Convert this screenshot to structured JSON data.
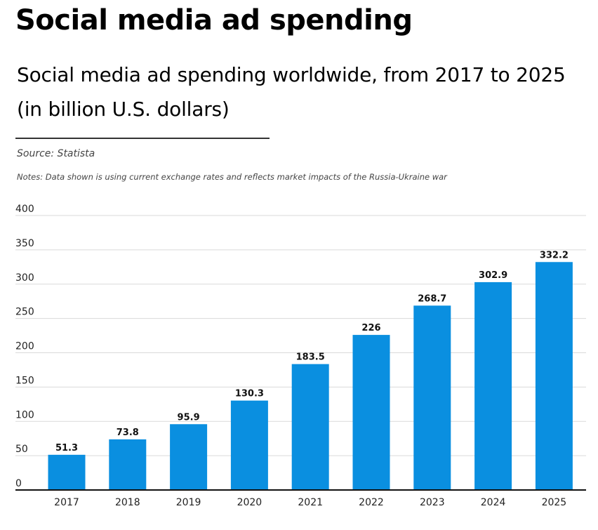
{
  "title": "Social media ad spending",
  "subtitle": "Social media ad spending worldwide, from 2017 to 2025 (in billion U.S. dollars)",
  "source": "Source: Statista",
  "notes": "Notes: Data shown is using current exchange rates and reflects market impacts of the Russia-Ukraine war",
  "chart_data": {
    "type": "bar",
    "title": "Social media ad spending worldwide, from 2017 to 2025 (in billion U.S. dollars)",
    "xlabel": "",
    "ylabel": "",
    "categories": [
      "2017",
      "2018",
      "2019",
      "2020",
      "2021",
      "2022",
      "2023",
      "2024",
      "2025"
    ],
    "values": [
      51.3,
      73.8,
      95.9,
      130.3,
      183.5,
      226,
      268.7,
      302.9,
      332.2
    ],
    "value_labels": [
      "51.3",
      "73.8",
      "95.9",
      "130.3",
      "183.5",
      "226",
      "268.7",
      "302.9",
      "332.2"
    ],
    "ylim": [
      0,
      400
    ],
    "yticks": [
      0,
      50,
      100,
      150,
      200,
      250,
      300,
      350,
      400
    ],
    "grid": true,
    "bar_color": "#0a8fe0",
    "legend": "none"
  }
}
